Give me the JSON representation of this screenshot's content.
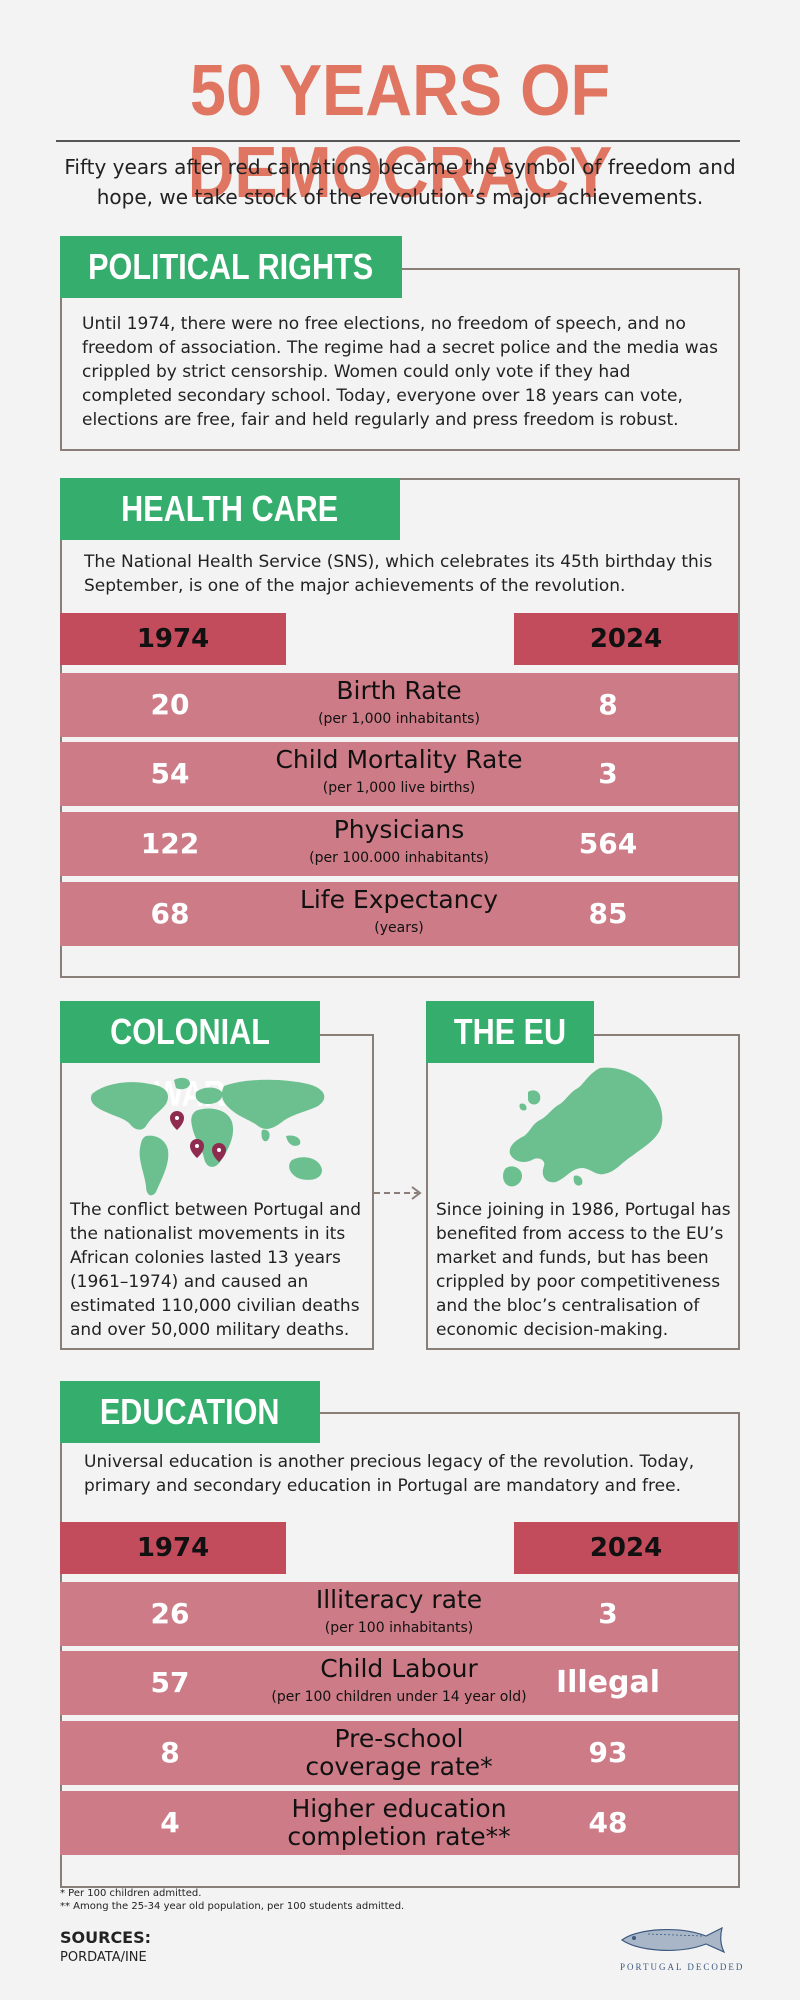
{
  "header": {
    "title": "50 YEARS OF DEMOCRACY",
    "subtitle": "Fifty years after red carnations became the symbol of freedom and hope, we take stock of the revolution’s major achievements."
  },
  "political": {
    "tab": "POLITICAL RIGHTS",
    "text": "Until 1974, there were no free elections, no freedom of speech, and no freedom of association. The regime had a secret police and the media was crippled by strict censorship. Women could only vote if they had completed secondary school. Today, everyone over 18 years can vote, elections are free, fair and held regularly and press freedom is robust."
  },
  "health": {
    "tab": "HEALTH CARE",
    "text": "The National Health Service (SNS), which celebrates its 45th birthday this September, is one of the major achievements of the revolution.",
    "year_left": "1974",
    "year_right": "2024",
    "rows": [
      {
        "left": "20",
        "label": "Birth Rate",
        "sub": "(per 1,000 inhabitants)",
        "right": "8"
      },
      {
        "left": "54",
        "label": "Child Mortality Rate",
        "sub": "(per 1,000 live births)",
        "right": "3"
      },
      {
        "left": "122",
        "label": "Physicians",
        "sub": "(per 100.000 inhabitants)",
        "right": "564"
      },
      {
        "left": "68",
        "label": "Life Expectancy",
        "sub": "(years)",
        "right": "85"
      }
    ]
  },
  "colonial": {
    "tab": "COLONIAL WAR",
    "text": "The conflict between Portugal and the nationalist movements in its African colonies lasted 13 years (1961–1974) and caused an estimated 110,000 civilian deaths and over 50,000 military deaths."
  },
  "eu": {
    "tab": "THE EU",
    "text": "Since joining in 1986, Portugal has benefited from access to the EU’s market and funds, but has been crippled by poor competitiveness and the bloc’s centralisation of economic decision-making."
  },
  "education": {
    "tab": "EDUCATION",
    "text": "Universal education is another precious legacy of the revolution. Today, primary and secondary education in Portugal are mandatory and free.",
    "year_left": "1974",
    "year_right": "2024",
    "rows": [
      {
        "left": "26",
        "label": "Illiteracy rate",
        "sub": "(per 100 inhabitants)",
        "right": "3"
      },
      {
        "left": "57",
        "label": "Child Labour",
        "sub": "(per 100 children under 14 year old)",
        "right": "Illegal"
      },
      {
        "left": "8",
        "label": "Pre-school",
        "label2": "coverage rate*",
        "right": "93"
      },
      {
        "left": "4",
        "label": "Higher education",
        "label2": "completion rate**",
        "right": "48"
      }
    ]
  },
  "footnotes": {
    "note1": "* Per 100 children admitted.",
    "note2": "** Among the 25-34 year old population, per 100 students admitted.",
    "sources_label": "SOURCES:",
    "sources_value": "PORDATA/INE",
    "brand": "PORTUGAL DECODED"
  },
  "colors": {
    "title": "#e07561",
    "tab_green": "#35ad6c",
    "year_red": "#c24b5c",
    "row_pink": "#cd7b87",
    "map_green": "#6cc08f",
    "pin": "#8e2b4f"
  },
  "icons": [
    "world-map-icon",
    "map-pin-icon",
    "europe-map-icon",
    "dashed-arrow-icon",
    "sardine-logo-icon"
  ]
}
